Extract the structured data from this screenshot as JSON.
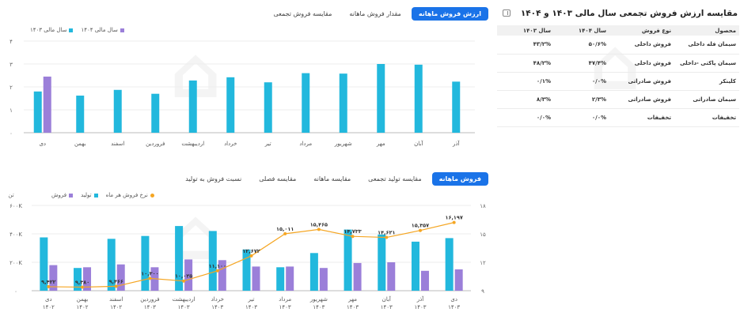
{
  "panel": {
    "title": "مقایسه ارزش فروش تجمعی سال مالی ۱۴۰۳ و ۱۴۰۴"
  },
  "summary_table": {
    "headers": [
      "محصول",
      "نوع فروش",
      "سال ۱۴۰۴",
      "سال ۱۴۰۳"
    ],
    "rows": [
      [
        "سیمان فله داخلی",
        "فروش داخلی",
        "۵۰/۶%",
        "۴۳/۲%"
      ],
      [
        "سیمان پاکتی -داخلی",
        "فروش داخلی",
        "۴۷/۴%",
        "۴۸/۲%"
      ],
      [
        "کلینکر",
        "فروش صادراتی",
        "۰/۰%",
        "۰/۱%"
      ],
      [
        "سیمان صادراتی",
        "فروش صادراتی",
        "۲/۳%",
        "۸/۳%"
      ],
      [
        "تخفیفات",
        "تخفیفات",
        "۰/۰%",
        "۰/۰%"
      ]
    ]
  },
  "top_tabs": [
    {
      "label": "ارزش فروش ماهانه",
      "active": true
    },
    {
      "label": "مقدار فروش ماهانه",
      "active": false
    },
    {
      "label": "مقایسه فروش تجمعی",
      "active": false
    }
  ],
  "top_legend": [
    {
      "label": "سال مالی ۱۴۰۴",
      "color": "#9b7fd9"
    },
    {
      "label": "سال مالی ۱۴۰۳",
      "color": "#22b8dd"
    }
  ],
  "bottom_tabs": [
    {
      "label": "فروش ماهانه",
      "active": true
    },
    {
      "label": "مقایسه تولید تجمعی",
      "active": false
    },
    {
      "label": "مقایسه ماهانه",
      "active": false
    },
    {
      "label": "مقایسه فصلی",
      "active": false
    },
    {
      "label": "نسبت فروش به تولید",
      "active": false
    }
  ],
  "bottom_legend": [
    {
      "label": "نرخ فروش هر ماه",
      "color": "#f5a623"
    },
    {
      "label": "تولید",
      "color": "#22b8dd"
    },
    {
      "label": "فروش",
      "color": "#9b7fd9"
    }
  ],
  "chart_data": [
    {
      "type": "bar",
      "categories": [
        "دی",
        "بهمن",
        "اسفند",
        "فروردین",
        "اردیبهشت",
        "خرداد",
        "تیر",
        "مرداد",
        "شهریور",
        "مهر",
        "آبان",
        "آذر"
      ],
      "ylim": [
        0,
        4
      ],
      "yticks": [
        0,
        1,
        2,
        3,
        4
      ],
      "ytick_labels": [
        "۰",
        "۱",
        "۲",
        "۳",
        "۴"
      ],
      "series": [
        {
          "name": "سال مالی ۱۴۰۳",
          "color": "#22b8dd",
          "values": [
            1.8,
            1.62,
            1.87,
            1.7,
            2.28,
            2.42,
            2.2,
            2.6,
            2.58,
            3.0,
            2.97,
            2.23
          ]
        },
        {
          "name": "سال مالی ۱۴۰۴",
          "color": "#9b7fd9",
          "values": [
            2.45,
            null,
            null,
            null,
            null,
            null,
            null,
            null,
            null,
            null,
            null,
            null
          ]
        }
      ]
    },
    {
      "type": "bar",
      "categories": [
        "دی ۱۴۰۲",
        "بهمن ۱۴۰۲",
        "اسفند ۱۴۰۲",
        "فروردین ۱۴۰۳",
        "اردیبهشت ۱۴۰۳",
        "خرداد ۱۴۰۳",
        "تیر ۱۴۰۳",
        "مرداد ۱۴۰۳",
        "شهریور ۱۴۰۳",
        "مهر ۱۴۰۳",
        "آبان ۱۴۰۳",
        "آذر ۱۴۰۳",
        "دی ۱۴۰۳"
      ],
      "category_lines": [
        [
          "دی",
          "۱۴۰۲"
        ],
        [
          "بهمن",
          "۱۴۰۲"
        ],
        [
          "اسفند",
          "۱۴۰۲"
        ],
        [
          "فروردین",
          "۱۴۰۳"
        ],
        [
          "اردیبهشت",
          "۱۴۰۳"
        ],
        [
          "خرداد",
          "۱۴۰۳"
        ],
        [
          "تیر",
          "۱۴۰۳"
        ],
        [
          "مرداد",
          "۱۴۰۳"
        ],
        [
          "شهریور",
          "۱۴۰۳"
        ],
        [
          "مهر",
          "۱۴۰۳"
        ],
        [
          "آبان",
          "۱۴۰۳"
        ],
        [
          "آذر",
          "۱۴۰۳"
        ],
        [
          "دی",
          "۱۴۰۳"
        ]
      ],
      "ylabel": "تن",
      "ylim": [
        0,
        600000
      ],
      "yticks": [
        0,
        200000,
        400000,
        600000
      ],
      "ytick_labels": [
        "۰",
        "۲۰۰K",
        "۴۰۰K",
        "۶۰۰K"
      ],
      "y2lim": [
        9,
        18
      ],
      "y2ticks": [
        9,
        12,
        15,
        18
      ],
      "y2tick_labels": [
        "۹",
        "۱۲",
        "۱۵",
        "۱۸"
      ],
      "series": [
        {
          "name": "تولید",
          "color": "#22b8dd",
          "values": [
            375000,
            160000,
            365000,
            385000,
            455000,
            420000,
            290000,
            165000,
            265000,
            430000,
            395000,
            345000,
            370000
          ]
        },
        {
          "name": "فروش",
          "color": "#9b7fd9",
          "values": [
            180000,
            165000,
            185000,
            165000,
            220000,
            215000,
            170000,
            170000,
            160000,
            195000,
            200000,
            140000,
            150000
          ]
        },
        {
          "name": "نرخ فروش هر ماه",
          "color": "#f5a623",
          "type": "line",
          "values": [
            9.422,
            9.38,
            9.466,
            10.3,
            10.025,
            11.1,
            12.672,
            15.011,
            15.465,
            14.733,
            14.621,
            15.357,
            16.197
          ],
          "labels": [
            "۹,۴۲۲",
            "۹,۳۸۰",
            "۹,۴۶۶",
            "۱۰,۳۰۰",
            "۱۰,۰۲۵",
            "۱۱,۱۰۰",
            "۱۲,۶۷۲",
            "۱۵,۰۱۱",
            "۱۵,۴۶۵",
            "۱۴,۷۳۳",
            "۱۴,۶۲۱",
            "۱۵,۳۵۷",
            "۱۶,۱۹۷"
          ]
        }
      ]
    }
  ]
}
